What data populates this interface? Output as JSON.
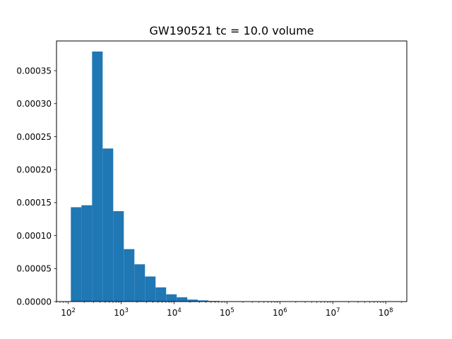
{
  "chart_data": {
    "type": "bar",
    "title": "GW190521 tc = 10.0 volume",
    "xlabel": "",
    "ylabel": "",
    "x_scale": "log",
    "xlim": [
      60,
      250000000
    ],
    "ylim": [
      0,
      0.000395
    ],
    "grid": false,
    "bar_color": "#1f77b4",
    "bins": [
      {
        "x0": 112,
        "x1": 178,
        "value": 0.000143
      },
      {
        "x0": 178,
        "x1": 282,
        "value": 0.000146
      },
      {
        "x0": 282,
        "x1": 447,
        "value": 0.000379
      },
      {
        "x0": 447,
        "x1": 708,
        "value": 0.000232
      },
      {
        "x0": 708,
        "x1": 1122,
        "value": 0.000137
      },
      {
        "x0": 1122,
        "x1": 1778,
        "value": 7.95e-05
      },
      {
        "x0": 1778,
        "x1": 2818,
        "value": 5.65e-05
      },
      {
        "x0": 2818,
        "x1": 4467,
        "value": 3.8e-05
      },
      {
        "x0": 4467,
        "x1": 7079,
        "value": 2.15e-05
      },
      {
        "x0": 7079,
        "x1": 11220,
        "value": 1.1e-05
      },
      {
        "x0": 11220,
        "x1": 17783,
        "value": 6.5e-06
      },
      {
        "x0": 17783,
        "x1": 28184,
        "value": 3e-06
      },
      {
        "x0": 28184,
        "x1": 44668,
        "value": 1.8e-06
      },
      {
        "x0": 44668,
        "x1": 70795,
        "value": 9e-07
      },
      {
        "x0": 70795,
        "x1": 112202,
        "value": 4e-07
      },
      {
        "x0": 112202,
        "x1": 177828,
        "value": 2e-07
      },
      {
        "x0": 177828,
        "x1": 281838,
        "value": 1e-07
      },
      {
        "x0": 281838,
        "x1": 446684,
        "value": 5e-08
      }
    ],
    "x_ticks": [
      {
        "value": 100,
        "base": "10",
        "exp": "2"
      },
      {
        "value": 1000,
        "base": "10",
        "exp": "3"
      },
      {
        "value": 10000,
        "base": "10",
        "exp": "4"
      },
      {
        "value": 100000,
        "base": "10",
        "exp": "5"
      },
      {
        "value": 1000000,
        "base": "10",
        "exp": "6"
      },
      {
        "value": 10000000,
        "base": "10",
        "exp": "7"
      },
      {
        "value": 100000000,
        "base": "10",
        "exp": "8"
      }
    ],
    "y_ticks": [
      {
        "value": 0,
        "label": "0.00000"
      },
      {
        "value": 5e-05,
        "label": "0.00005"
      },
      {
        "value": 0.0001,
        "label": "0.00010"
      },
      {
        "value": 0.00015,
        "label": "0.00015"
      },
      {
        "value": 0.0002,
        "label": "0.00020"
      },
      {
        "value": 0.00025,
        "label": "0.00025"
      },
      {
        "value": 0.0003,
        "label": "0.00030"
      },
      {
        "value": 0.00035,
        "label": "0.00035"
      }
    ]
  }
}
